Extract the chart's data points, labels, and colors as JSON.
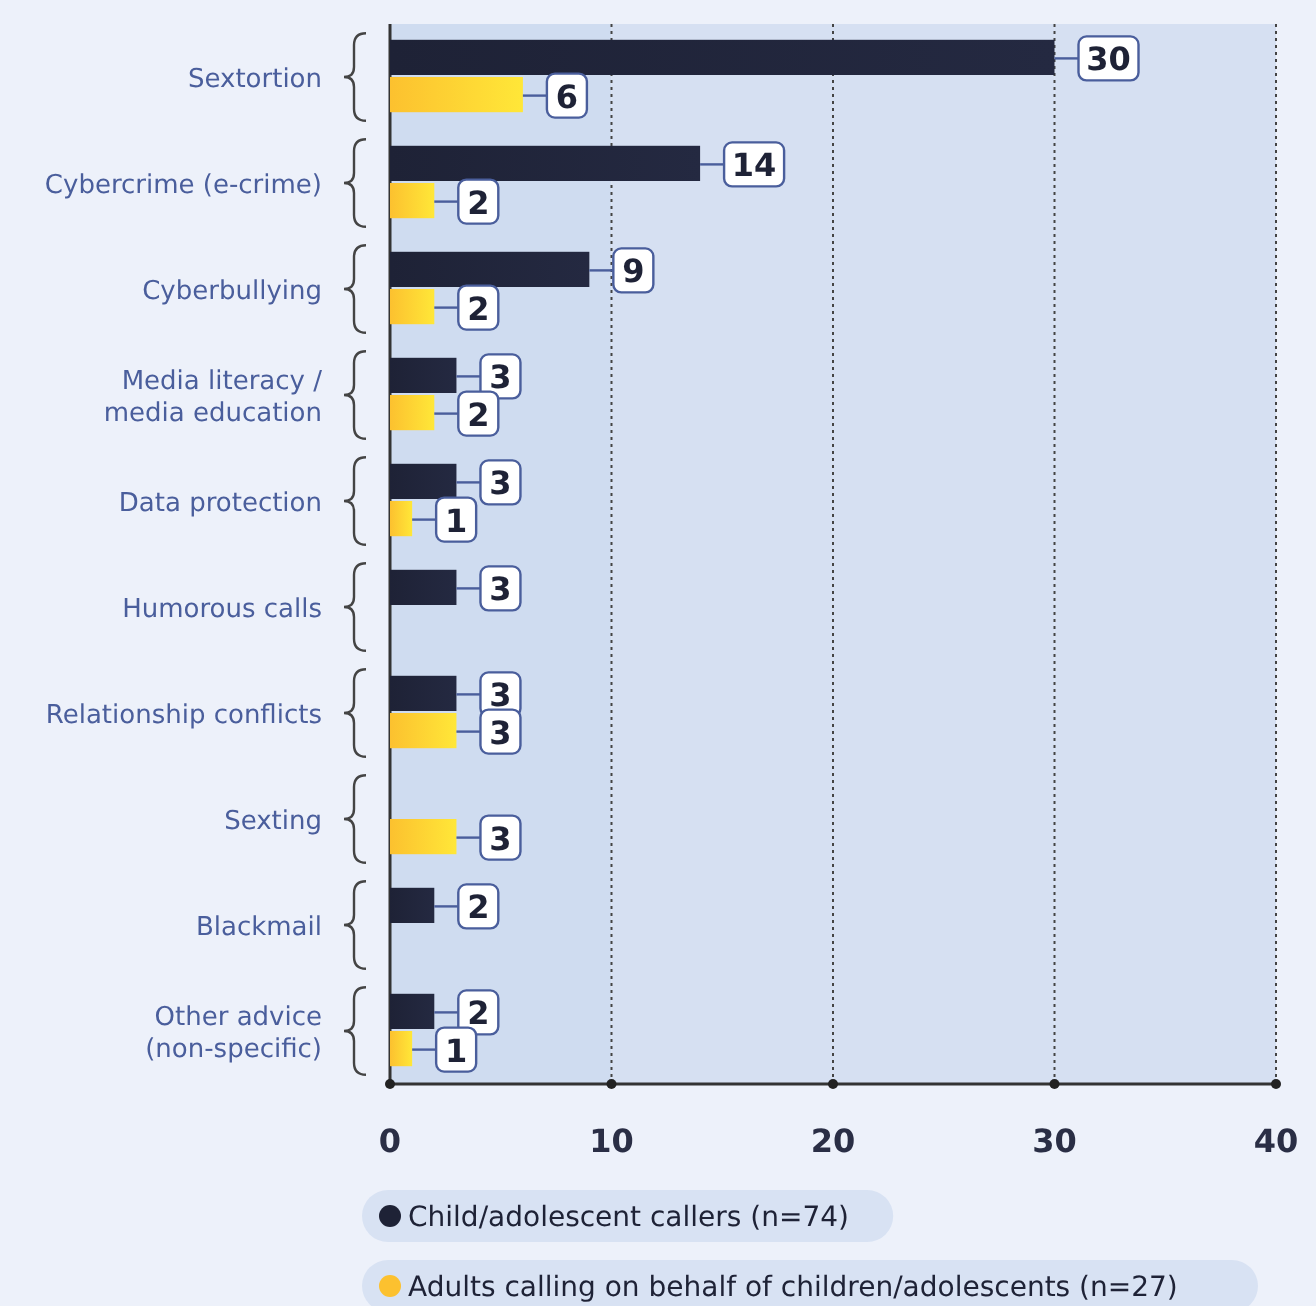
{
  "chart_data": {
    "type": "bar",
    "orientation": "horizontal",
    "categories": [
      "Sextortion",
      "Cybercrime (e-crime)",
      "Cyberbullying",
      "Media literacy /\nmedia education",
      "Data protection",
      "Humorous calls",
      "Relationship conflicts",
      "Sexting",
      "Blackmail",
      "Other advice\n(non-specific)"
    ],
    "series": [
      {
        "name": "Child/adolescent callers (n=74)",
        "color": "#1e2236",
        "values": [
          30,
          14,
          9,
          3,
          3,
          3,
          3,
          null,
          2,
          2
        ]
      },
      {
        "name": "Adults calling on behalf of children/adolescents (n=27)",
        "color": "#fcc12f",
        "values": [
          6,
          2,
          2,
          2,
          1,
          null,
          3,
          3,
          null,
          1
        ]
      }
    ],
    "bands": [
      {
        "axis": "x",
        "from": 0,
        "to": 10,
        "color": "#cfdcf0"
      },
      {
        "axis": "x",
        "from": 10,
        "to": 20,
        "color": "#d6e0f2"
      },
      {
        "axis": "x",
        "from": 20,
        "to": 30,
        "color": "#d6e0f2"
      },
      {
        "axis": "x",
        "from": 30,
        "to": 40,
        "color": "#d6e0f2"
      }
    ],
    "xlim": [
      0,
      40
    ],
    "xticks": [
      0,
      10,
      20,
      30,
      40
    ],
    "grid": "x",
    "data_labels": true,
    "legend": "bottom"
  }
}
